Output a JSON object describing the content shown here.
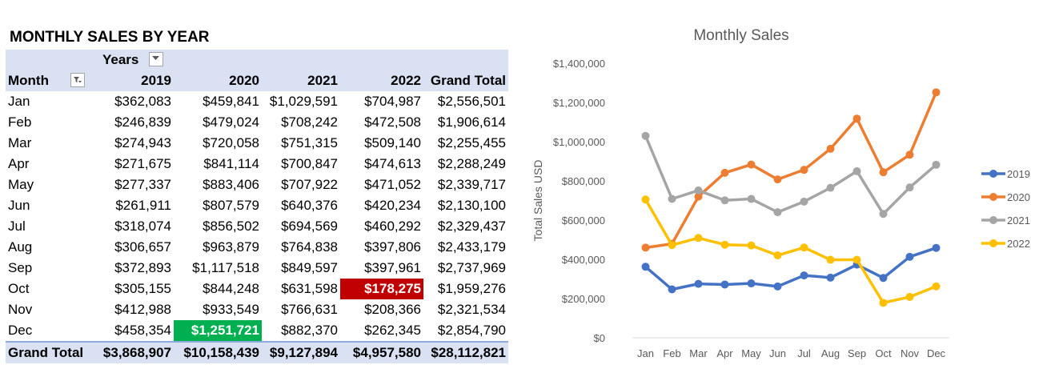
{
  "pivot": {
    "title": "MONTHLY SALES BY YEAR",
    "col_field_label": "Years",
    "row_field_label": "Month",
    "columns": [
      "2019",
      "2020",
      "2021",
      "2022",
      "Grand Total"
    ],
    "rows": [
      {
        "month": "Jan",
        "values": [
          "$362,083",
          "$459,841",
          "$1,029,591",
          "$704,987",
          "$2,556,501"
        ]
      },
      {
        "month": "Feb",
        "values": [
          "$246,839",
          "$479,024",
          "$708,242",
          "$472,508",
          "$1,906,614"
        ]
      },
      {
        "month": "Mar",
        "values": [
          "$274,943",
          "$720,058",
          "$751,315",
          "$509,140",
          "$2,255,455"
        ]
      },
      {
        "month": "Apr",
        "values": [
          "$271,675",
          "$841,114",
          "$700,847",
          "$474,613",
          "$2,288,249"
        ]
      },
      {
        "month": "May",
        "values": [
          "$277,337",
          "$883,406",
          "$707,922",
          "$471,052",
          "$2,339,717"
        ]
      },
      {
        "month": "Jun",
        "values": [
          "$261,911",
          "$807,579",
          "$640,376",
          "$420,234",
          "$2,130,100"
        ]
      },
      {
        "month": "Jul",
        "values": [
          "$318,074",
          "$856,502",
          "$694,569",
          "$460,292",
          "$2,329,437"
        ]
      },
      {
        "month": "Aug",
        "values": [
          "$306,657",
          "$963,879",
          "$764,838",
          "$397,806",
          "$2,433,179"
        ]
      },
      {
        "month": "Sep",
        "values": [
          "$372,893",
          "$1,117,518",
          "$849,597",
          "$397,961",
          "$2,737,969"
        ]
      },
      {
        "month": "Oct",
        "values": [
          "$305,155",
          "$844,248",
          "$631,598",
          "$178,275",
          "$1,959,276"
        ]
      },
      {
        "month": "Nov",
        "values": [
          "$412,988",
          "$933,549",
          "$766,631",
          "$208,366",
          "$2,321,534"
        ]
      },
      {
        "month": "Dec",
        "values": [
          "$458,354",
          "$1,251,721",
          "$882,370",
          "$262,345",
          "$2,854,790"
        ]
      }
    ],
    "grand_total": {
      "label": "Grand Total",
      "values": [
        "$3,868,907",
        "$10,158,439",
        "$9,127,894",
        "$4,957,580",
        "$28,112,821"
      ]
    },
    "highlights": {
      "min_color": "#c00000",
      "max_color": "#00b050"
    }
  },
  "chart_data": {
    "type": "line",
    "title": "Monthly Sales",
    "ylabel": "Total Sales USD",
    "xlabel": "",
    "categories": [
      "Jan",
      "Feb",
      "Mar",
      "Apr",
      "May",
      "Jun",
      "Jul",
      "Aug",
      "Sep",
      "Oct",
      "Nov",
      "Dec"
    ],
    "ylim": [
      0,
      1400000
    ],
    "yticks": [
      0,
      200000,
      400000,
      600000,
      800000,
      1000000,
      1200000,
      1400000
    ],
    "ytick_labels": [
      "$0",
      "$200,000",
      "$400,000",
      "$600,000",
      "$800,000",
      "$1,000,000",
      "$1,200,000",
      "$1,400,000"
    ],
    "grid": false,
    "legend": "right",
    "series": [
      {
        "name": "2019",
        "color": "#4472c4",
        "values": [
          362083,
          246839,
          274943,
          271675,
          277337,
          261911,
          318074,
          306657,
          372893,
          305155,
          412988,
          458354
        ]
      },
      {
        "name": "2020",
        "color": "#ed7d31",
        "values": [
          459841,
          479024,
          720058,
          841114,
          883406,
          807579,
          856502,
          963879,
          1117518,
          844248,
          933549,
          1251721
        ]
      },
      {
        "name": "2021",
        "color": "#a5a5a5",
        "values": [
          1029591,
          708242,
          751315,
          700847,
          707922,
          640376,
          694569,
          764838,
          849597,
          631598,
          766631,
          882370
        ]
      },
      {
        "name": "2022",
        "color": "#ffc000",
        "values": [
          704987,
          472508,
          509140,
          474613,
          471052,
          420234,
          460292,
          397806,
          397961,
          178275,
          208366,
          262345
        ]
      }
    ]
  }
}
